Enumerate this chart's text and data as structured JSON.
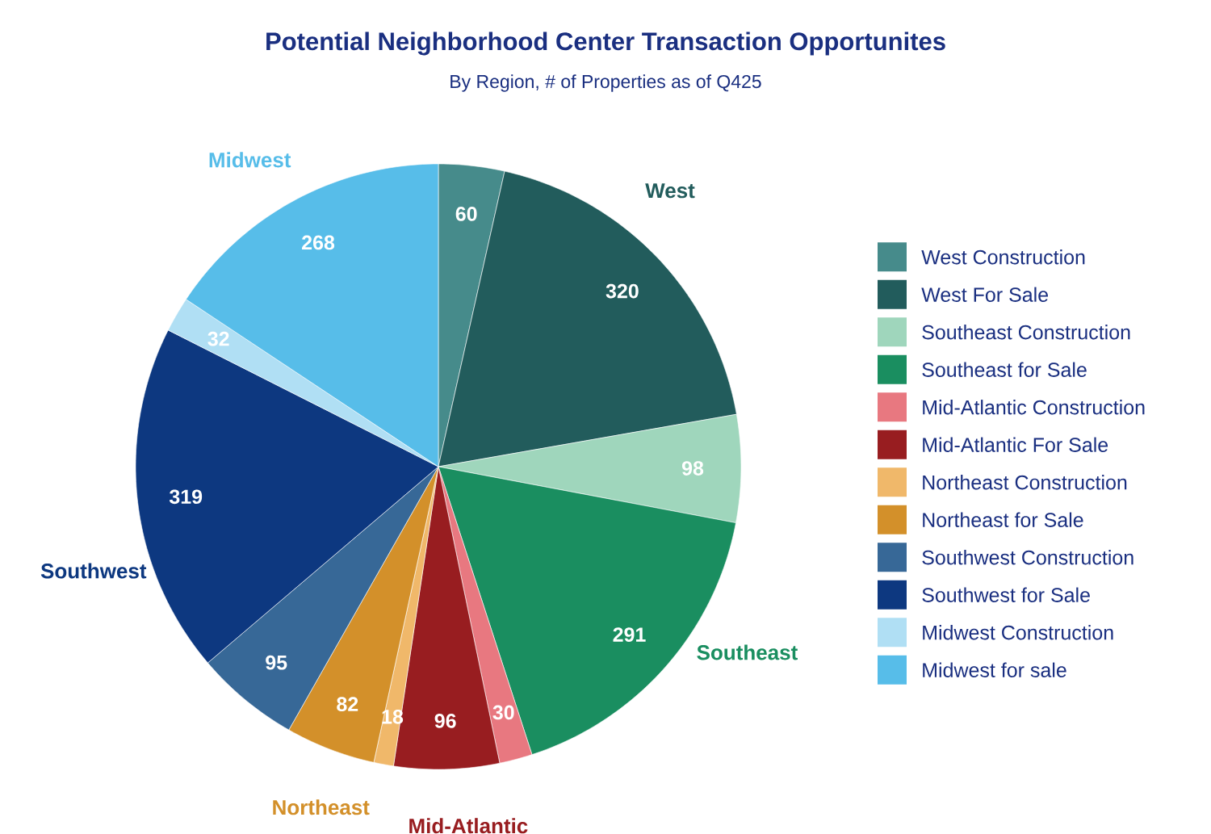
{
  "chart_data": {
    "type": "pie",
    "title": "Potential Neighborhood Center Transaction Opportunites",
    "subtitle": "By Region, # of Properties as of Q425",
    "categories": [
      "West Construction",
      "West For Sale",
      "Southeast Construction",
      "Southeast for Sale",
      "Mid-Atlantic Construction",
      "Mid-Atlantic For Sale",
      "Northeast Construction",
      "Northeast for Sale",
      "Southwest Construction",
      "Southwest for Sale",
      "Midwest Construction",
      "Midwest for sale"
    ],
    "values": [
      60,
      320,
      98,
      291,
      30,
      96,
      18,
      82,
      95,
      319,
      32,
      268
    ],
    "colors": [
      "#468b8b",
      "#225c5c",
      "#9fd6bc",
      "#1a8e60",
      "#e87880",
      "#981d20",
      "#f0b86a",
      "#d3902a",
      "#376897",
      "#0d3880",
      "#b0dff4",
      "#57bde9"
    ],
    "data_labels": true,
    "legend": "right",
    "annotations": [
      "West",
      "Southeast",
      "Mid-Atlantic",
      "Northeast",
      "Southwest",
      "Midwest"
    ]
  }
}
